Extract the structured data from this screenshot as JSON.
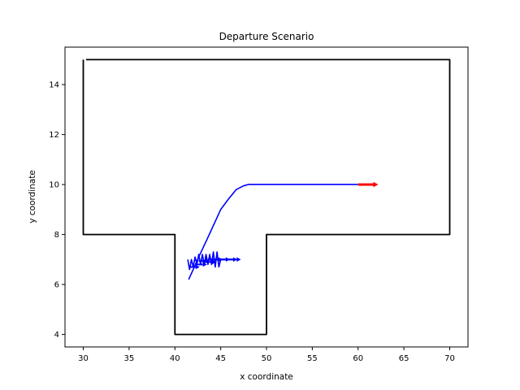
{
  "chart_data": {
    "type": "line",
    "title": "Departure Scenario",
    "xlabel": "x coordinate",
    "ylabel": "y coordinate",
    "xlim": [
      28,
      72
    ],
    "ylim": [
      3.5,
      15.5
    ],
    "xticks": [
      30,
      35,
      40,
      45,
      50,
      55,
      60,
      65,
      70
    ],
    "yticks": [
      4,
      6,
      8,
      10,
      12,
      14
    ],
    "grid": false,
    "series": [
      {
        "role": "boundary",
        "color": "#000000",
        "points": [
          [
            30.3,
            15
          ],
          [
            70,
            15
          ],
          [
            70,
            8
          ],
          [
            50,
            8
          ],
          [
            50,
            4
          ],
          [
            40,
            4
          ],
          [
            40,
            8
          ],
          [
            30,
            8
          ],
          [
            30,
            15
          ]
        ]
      },
      {
        "role": "path",
        "color": "#0000ff",
        "points": [
          [
            41.5,
            6.2
          ],
          [
            42.0,
            6.6
          ],
          [
            42.6,
            7.1
          ],
          [
            43.5,
            7.8
          ],
          [
            44.5,
            8.6
          ],
          [
            45.0,
            9.0
          ],
          [
            45.8,
            9.4
          ],
          [
            46.7,
            9.8
          ],
          [
            47.5,
            9.95
          ],
          [
            48.0,
            10.0
          ],
          [
            50,
            10.0
          ],
          [
            55,
            10.0
          ],
          [
            60,
            10.0
          ]
        ]
      },
      {
        "role": "path-jitter",
        "color": "#0000ff",
        "points": [
          [
            41.4,
            7.0
          ],
          [
            41.6,
            6.6
          ],
          [
            41.8,
            7.0
          ],
          [
            42.0,
            6.7
          ],
          [
            42.2,
            7.1
          ],
          [
            42.4,
            6.8
          ],
          [
            42.6,
            7.2
          ],
          [
            42.8,
            6.8
          ],
          [
            43.0,
            7.2
          ],
          [
            43.2,
            6.8
          ],
          [
            43.4,
            7.2
          ],
          [
            43.6,
            6.8
          ],
          [
            43.8,
            7.2
          ],
          [
            44.0,
            6.8
          ],
          [
            44.2,
            7.3
          ],
          [
            44.4,
            6.7
          ],
          [
            44.6,
            7.3
          ],
          [
            44.8,
            6.7
          ],
          [
            45.0,
            7.0
          ]
        ]
      }
    ],
    "arrows": [
      {
        "x": 60.0,
        "y": 10.0,
        "dx": 2.2,
        "dy": 0,
        "color": "#ff0000",
        "width": 3
      },
      {
        "x": 41.5,
        "y": 6.7,
        "dx": 1.2,
        "dy": 0,
        "color": "#0000ff",
        "width": 2
      },
      {
        "x": 42.2,
        "y": 6.8,
        "dx": 1.3,
        "dy": 0,
        "color": "#0000ff",
        "width": 2
      },
      {
        "x": 42.6,
        "y": 6.95,
        "dx": 1.2,
        "dy": 0,
        "color": "#0000ff",
        "width": 2
      },
      {
        "x": 43.0,
        "y": 6.9,
        "dx": 1.5,
        "dy": 0,
        "color": "#0000ff",
        "width": 2
      },
      {
        "x": 43.6,
        "y": 7.0,
        "dx": 1.6,
        "dy": 0,
        "color": "#0000ff",
        "width": 2
      },
      {
        "x": 44.2,
        "y": 7.0,
        "dx": 1.8,
        "dy": 0,
        "color": "#0000ff",
        "width": 2
      },
      {
        "x": 44.8,
        "y": 7.0,
        "dx": 2.0,
        "dy": 0,
        "color": "#0000ff",
        "width": 2
      },
      {
        "x": 45.2,
        "y": 7.0,
        "dx": 2.0,
        "dy": 0,
        "color": "#0000ff",
        "width": 2
      }
    ]
  }
}
